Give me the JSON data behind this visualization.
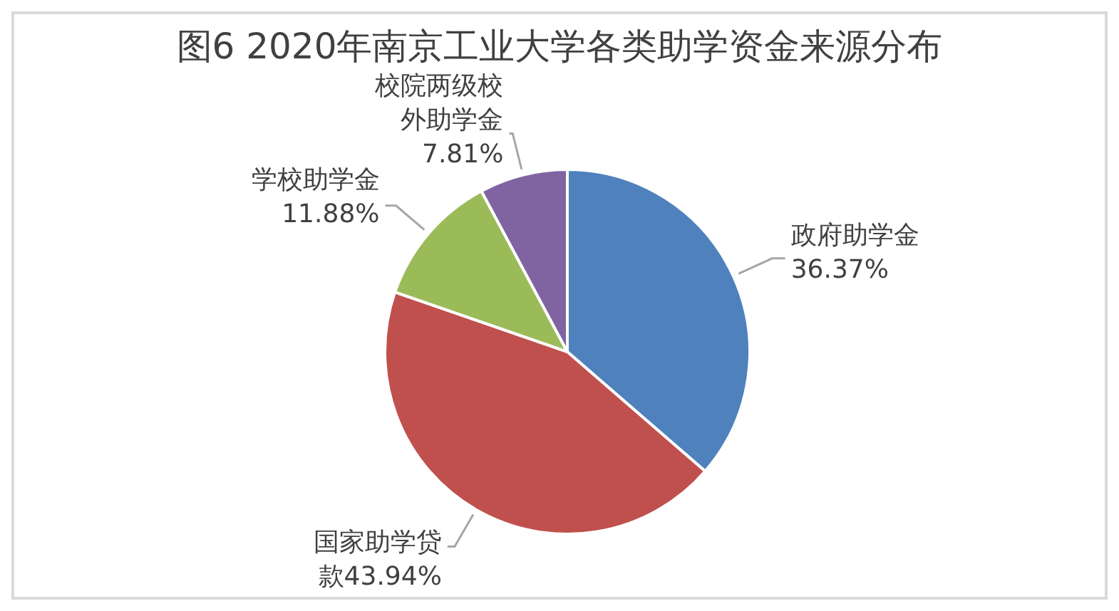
{
  "chart_data": {
    "type": "pie",
    "title": "图6 2020年南京工业大学各类助学资金来源分布",
    "categories": [
      "政府助学金",
      "国家助学贷款",
      "学校助学金",
      "校院两级校外助学金"
    ],
    "values": [
      36.37,
      43.94,
      11.88,
      7.81
    ],
    "colors": [
      "#4f81bd",
      "#c0504d",
      "#9bbb59",
      "#8064a2"
    ],
    "value_labels": [
      "36.37%",
      "43.94%",
      "11.88%",
      "7.81%"
    ],
    "legend": false
  }
}
